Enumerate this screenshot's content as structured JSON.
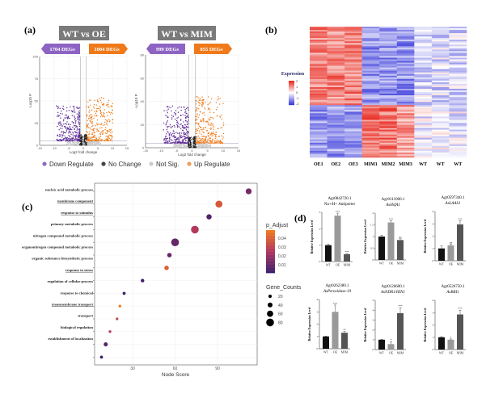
{
  "panel_labels": {
    "a": "(a)",
    "b": "(b)",
    "c": "(c)",
    "d": "(d)"
  },
  "chart_data": [
    {
      "type": "scatter",
      "panel": "a",
      "title": "WT vs OE",
      "down_label": "1704 DEGs",
      "up_label": "1004 DEGs",
      "xlabel": "Log2 fold change",
      "ylabel": "-Log10 P",
      "xlim": [
        -15,
        15
      ],
      "ylim": [
        0,
        100
      ],
      "xticks": [
        -15,
        -10,
        -5,
        0,
        5,
        10,
        15
      ],
      "yticks": [
        0,
        25,
        50,
        75,
        100
      ],
      "grid": true
    },
    {
      "type": "scatter",
      "panel": "a",
      "title": "WT vs MIM",
      "down_label": "999 DEGs",
      "up_label": "855 DEGs",
      "xlabel": "Log2 fold change",
      "ylabel": "-Log10 P",
      "xlim": [
        -15,
        15
      ],
      "ylim": [
        0,
        80
      ],
      "xticks": [
        -15,
        -10,
        -5,
        0,
        5,
        10,
        15
      ],
      "yticks": [
        0,
        20,
        40,
        60,
        80
      ],
      "grid": true
    },
    {
      "type": "heatmap",
      "panel": "b",
      "columns": [
        "OE1",
        "OE2",
        "OE3",
        "MIM1",
        "MIM2",
        "MIM3",
        "WT",
        "WT",
        "WT"
      ],
      "legend_title": "Expression",
      "scale_ticks": [
        2,
        1,
        0,
        -1,
        -2
      ],
      "colors": {
        "high": "#e8281e",
        "mid": "#ffffff",
        "low": "#3b3bdb"
      }
    },
    {
      "type": "scatter",
      "panel": "c",
      "xlabel": "Node Score",
      "xticks": [
        30,
        60,
        90
      ],
      "xlim": [
        3,
        118
      ],
      "grid": true,
      "terms": [
        {
          "label": "nucleic acid metabolic process",
          "underline": false,
          "score": 112,
          "gene_count": 55,
          "p_adjust": 0.015
        },
        {
          "label": "membrane component",
          "underline": true,
          "score": 91,
          "gene_count": 70,
          "p_adjust": 0.036
        },
        {
          "label": "response to stimulus",
          "underline": true,
          "score": 84,
          "gene_count": 45,
          "p_adjust": 0.008
        },
        {
          "label": "primary metabolic process",
          "underline": false,
          "score": 74,
          "gene_count": 80,
          "p_adjust": 0.026
        },
        {
          "label": "nitrogen compound metabolic process",
          "underline": false,
          "score": 60,
          "gene_count": 80,
          "p_adjust": 0.012
        },
        {
          "label": "organonitrogen compound metabolic process",
          "underline": false,
          "score": 56,
          "gene_count": 35,
          "p_adjust": 0.012
        },
        {
          "label": "organic substance biosynthetic process",
          "underline": false,
          "score": 54,
          "gene_count": 35,
          "p_adjust": 0.038
        },
        {
          "label": "response to stress",
          "underline": true,
          "score": 37,
          "gene_count": 22,
          "p_adjust": 0.006
        },
        {
          "label": "regulation of cellular process",
          "underline": false,
          "score": 24,
          "gene_count": 15,
          "p_adjust": 0.004
        },
        {
          "label": "response to chemical",
          "underline": false,
          "score": 21,
          "gene_count": 10,
          "p_adjust": 0.045
        },
        {
          "label": "transmembrane transport",
          "underline": true,
          "score": 19,
          "gene_count": 10,
          "p_adjust": 0.03
        },
        {
          "label": "transport",
          "underline": false,
          "score": 14,
          "gene_count": 10,
          "p_adjust": 0.026
        },
        {
          "label": "biological regulation",
          "underline": false,
          "score": 11,
          "gene_count": 30,
          "p_adjust": 0.01
        },
        {
          "label": "establishment of localization",
          "underline": false,
          "score": 8,
          "gene_count": 15,
          "p_adjust": 0.005
        }
      ],
      "color_legend": {
        "title": "p_Adjust",
        "ticks": [
          0.04,
          0.03,
          0.02,
          0.01
        ],
        "colors": [
          "#f07a20",
          "#b0365e",
          "#3b1f6e"
        ]
      },
      "size_legend": {
        "title": "Gene_Counts",
        "values": [
          20,
          40,
          60,
          80
        ]
      }
    },
    {
      "type": "bar",
      "panel": "d",
      "charts": [
        {
          "gene_id": "Agr0842720.1",
          "gene_name": "Na+/H+ Antiporter",
          "ylim": [
            0,
            3
          ],
          "yticks": [
            0,
            1,
            2,
            3
          ],
          "values": [
            1.0,
            2.8,
            0.45
          ],
          "errors": [
            0.06,
            0.15,
            0.04
          ],
          "sig": [
            "",
            "***",
            "***"
          ]
        },
        {
          "gene_id": "Agr0111000.1",
          "gene_name": "AsHsfA1",
          "ylim": [
            0,
            2.0
          ],
          "yticks": [
            0.0,
            0.5,
            1.0,
            1.5,
            2.0
          ],
          "values": [
            1.0,
            1.6,
            0.85
          ],
          "errors": [
            0.06,
            0.08,
            0.05
          ],
          "sig": [
            "",
            "***",
            "ns"
          ]
        },
        {
          "gene_id": "Agr0597340.1",
          "gene_name": "AsLAAS1",
          "ylim": [
            0,
            4
          ],
          "yticks": [
            0,
            1,
            2,
            3,
            4
          ],
          "values": [
            1.0,
            1.25,
            2.95
          ],
          "errors": [
            0.2,
            0.08,
            0.3
          ],
          "sig": [
            "",
            "ns",
            "***"
          ]
        },
        {
          "gene_id": "Agr0262380.1",
          "gene_name": "AsPeroxidase-19",
          "ylim": [
            0,
            4
          ],
          "yticks": [
            0,
            1,
            2,
            3,
            4
          ],
          "values": [
            1.0,
            3.0,
            1.3
          ],
          "errors": [
            0.03,
            0.55,
            0.1
          ],
          "sig": [
            "",
            "***",
            "**"
          ]
        },
        {
          "gene_id": "Agr0126600.1",
          "gene_name": "AsNDR1/HIN1",
          "ylim": [
            0,
            5
          ],
          "yticks": [
            0,
            1,
            2,
            3,
            4,
            5
          ],
          "values": [
            1.0,
            0.55,
            3.7
          ],
          "errors": [
            0.04,
            0.25,
            0.55
          ],
          "sig": [
            "",
            "*",
            "***"
          ]
        },
        {
          "gene_id": "Agr0526750.1",
          "gene_name": "AsBRI1",
          "ylim": [
            0,
            4
          ],
          "yticks": [
            0,
            1,
            2,
            3,
            4
          ],
          "values": [
            1.0,
            0.8,
            2.85
          ],
          "errors": [
            0.05,
            0.06,
            0.35
          ],
          "sig": [
            "",
            "*",
            "***"
          ]
        }
      ],
      "categories": [
        "WT",
        "OE",
        "MIM"
      ],
      "ylabel": "Relative Expression Level",
      "colors": [
        "#111111",
        "#9a9a9a",
        "#555555"
      ]
    }
  ],
  "volcano_legend": [
    {
      "label": "Down Regulate",
      "color": "#8e6cc4"
    },
    {
      "label": "No Change",
      "color": "#444444"
    },
    {
      "label": "Not Sig.",
      "color": "#cccccc"
    },
    {
      "label": "Up Regulate",
      "color": "#f0a05a"
    }
  ],
  "colors": {
    "down": "#5b2a95",
    "up": "#f07a1a",
    "title_box": "#7a7a7a",
    "down_arrow": "#8d64c3",
    "up_arrow": "#f07a1a"
  }
}
